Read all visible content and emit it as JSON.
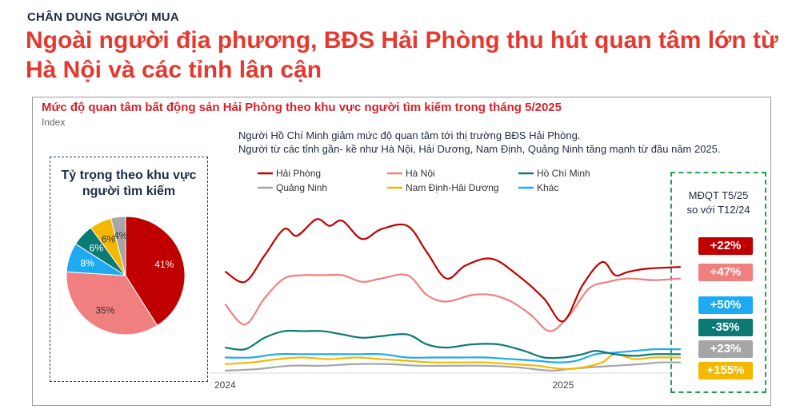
{
  "header": {
    "kicker": "CHÂN DUNG NGƯỜI MUA",
    "headline": "Ngoài người địa phương, BĐS Hải Phòng thu hút quan tâm lớn từ Hà Nội và các tỉnh lân cận"
  },
  "chart_data": [
    {
      "type": "pie",
      "title_lines": [
        "Tỷ trọng theo khu vực",
        "người tìm kiếm"
      ],
      "slices": [
        {
          "name": "Hải Phòng",
          "value": 41,
          "label": "41%",
          "color": "#c00000"
        },
        {
          "name": "Hà Nội",
          "value": 35,
          "label": "35%",
          "color": "#f08080"
        },
        {
          "name": "Khác",
          "value": 8,
          "label": "8%",
          "color": "#1eaaf1"
        },
        {
          "name": "Hồ Chí Minh",
          "value": 6,
          "label": "6%",
          "color": "#0b7a75"
        },
        {
          "name": "Nam Định-Hải Dương",
          "value": 6,
          "label": "6%",
          "color": "#f5b800"
        },
        {
          "name": "Quảng Ninh",
          "value": 4,
          "label": "4%",
          "color": "#a6a6a6"
        }
      ]
    },
    {
      "type": "line",
      "title": "Mức độ quan tâm bất động sản Hải Phòng theo khu vực người tìm kiếm trong tháng 5/2025",
      "ylabel": "Index",
      "note_lines": [
        "Người Hồ Chí Minh giảm mức độ quan tâm tới thị trường BĐS Hải Phòng.",
        "Người từ các tỉnh gần- kề như Hà Nội, Hải Dương, Nam Định, Quảng Ninh tăng mạnh từ đầu năm 2025."
      ],
      "x_ticks": [
        {
          "label": "2024",
          "x": 0
        },
        {
          "label": "2025",
          "x": 52
        }
      ],
      "xlim": [
        0,
        70
      ],
      "ylim": [
        0,
        100
      ],
      "legend": "top",
      "series": [
        {
          "name": "Hải Phòng",
          "color": "#c00000",
          "points": [
            [
              0,
              60
            ],
            [
              3,
              54
            ],
            [
              6,
              70
            ],
            [
              9,
              86
            ],
            [
              11,
              82
            ],
            [
              14,
              92
            ],
            [
              16,
              88
            ],
            [
              18,
              91
            ],
            [
              21,
              80
            ],
            [
              24,
              86
            ],
            [
              28,
              88
            ],
            [
              31,
              72
            ],
            [
              34,
              56
            ],
            [
              37,
              64
            ],
            [
              41,
              68
            ],
            [
              45,
              58
            ],
            [
              49,
              44
            ],
            [
              52,
              30
            ],
            [
              55,
              52
            ],
            [
              58,
              66
            ],
            [
              60,
              58
            ],
            [
              62,
              60
            ],
            [
              65,
              62
            ],
            [
              70,
              63
            ]
          ]
        },
        {
          "name": "Hà Nội",
          "color": "#f08080",
          "points": [
            [
              0,
              40
            ],
            [
              3,
              28
            ],
            [
              6,
              44
            ],
            [
              9,
              56
            ],
            [
              12,
              58
            ],
            [
              15,
              58
            ],
            [
              18,
              58
            ],
            [
              21,
              54
            ],
            [
              24,
              56
            ],
            [
              28,
              58
            ],
            [
              31,
              46
            ],
            [
              34,
              42
            ],
            [
              38,
              46
            ],
            [
              41,
              46
            ],
            [
              44,
              42
            ],
            [
              47,
              34
            ],
            [
              50,
              24
            ],
            [
              53,
              34
            ],
            [
              56,
              50
            ],
            [
              59,
              54
            ],
            [
              62,
              56
            ],
            [
              66,
              55
            ],
            [
              70,
              56
            ]
          ]
        },
        {
          "name": "Hồ Chí Minh",
          "color": "#0b7a75",
          "points": [
            [
              0,
              14
            ],
            [
              3,
              13
            ],
            [
              6,
              20
            ],
            [
              9,
              24
            ],
            [
              12,
              24
            ],
            [
              15,
              24
            ],
            [
              18,
              22
            ],
            [
              21,
              20
            ],
            [
              24,
              21
            ],
            [
              28,
              22
            ],
            [
              31,
              16
            ],
            [
              34,
              14
            ],
            [
              38,
              16
            ],
            [
              42,
              16
            ],
            [
              46,
              12
            ],
            [
              49,
              8
            ],
            [
              52,
              8
            ],
            [
              55,
              10
            ],
            [
              57,
              12
            ],
            [
              60,
              10
            ],
            [
              63,
              9
            ],
            [
              66,
              10
            ],
            [
              70,
              10
            ]
          ]
        },
        {
          "name": "Quảng Ninh",
          "color": "#a6a6a6",
          "points": [
            [
              0,
              0
            ],
            [
              5,
              1
            ],
            [
              10,
              3
            ],
            [
              15,
              3
            ],
            [
              20,
              4
            ],
            [
              25,
              4
            ],
            [
              30,
              3
            ],
            [
              35,
              3
            ],
            [
              40,
              3
            ],
            [
              45,
              2
            ],
            [
              50,
              0
            ],
            [
              53,
              1
            ],
            [
              56,
              2
            ],
            [
              60,
              3
            ],
            [
              64,
              4
            ],
            [
              67,
              5
            ],
            [
              70,
              5
            ]
          ]
        },
        {
          "name": "Nam Định-Hải Dương",
          "color": "#f5b800",
          "points": [
            [
              0,
              4
            ],
            [
              4,
              5
            ],
            [
              8,
              7
            ],
            [
              12,
              8
            ],
            [
              16,
              7
            ],
            [
              20,
              8
            ],
            [
              24,
              7
            ],
            [
              28,
              6
            ],
            [
              32,
              5
            ],
            [
              36,
              5
            ],
            [
              40,
              5
            ],
            [
              44,
              4
            ],
            [
              48,
              3
            ],
            [
              52,
              1
            ],
            [
              55,
              2
            ],
            [
              58,
              5
            ],
            [
              60,
              10
            ],
            [
              63,
              7
            ],
            [
              66,
              8
            ],
            [
              70,
              8
            ]
          ]
        },
        {
          "name": "Khác",
          "color": "#1eaaf1",
          "points": [
            [
              0,
              8
            ],
            [
              4,
              8
            ],
            [
              8,
              10
            ],
            [
              12,
              10
            ],
            [
              16,
              10
            ],
            [
              20,
              10
            ],
            [
              24,
              10
            ],
            [
              28,
              8
            ],
            [
              32,
              8
            ],
            [
              36,
              8
            ],
            [
              40,
              8
            ],
            [
              44,
              7
            ],
            [
              48,
              6
            ],
            [
              51,
              5
            ],
            [
              54,
              6
            ],
            [
              57,
              10
            ],
            [
              60,
              11
            ],
            [
              63,
              12
            ],
            [
              66,
              13
            ],
            [
              70,
              13
            ]
          ]
        }
      ]
    }
  ],
  "mdqt": {
    "title_lines": [
      "MĐQT T5/25",
      "so với T12/24"
    ],
    "badges": [
      {
        "label": "+22%",
        "color": "#c00000"
      },
      {
        "label": "+47%",
        "color": "#f08080"
      },
      {
        "label": "+50%",
        "color": "#1eaaf1"
      },
      {
        "label": "-35%",
        "color": "#0b7a75"
      },
      {
        "label": "+23%",
        "color": "#a6a6a6"
      },
      {
        "label": "+155%",
        "color": "#f5b800"
      }
    ]
  }
}
